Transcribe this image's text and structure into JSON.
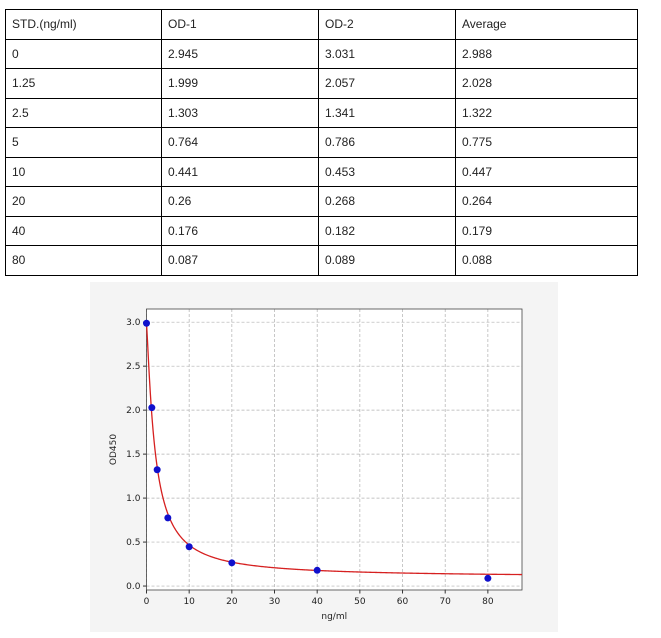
{
  "table": {
    "headers": [
      "STD.(ng/ml)",
      "OD-1",
      "OD-2",
      "Average"
    ],
    "rows": [
      [
        "0",
        "2.945",
        "3.031",
        "2.988"
      ],
      [
        "1.25",
        "1.999",
        "2.057",
        "2.028"
      ],
      [
        "2.5",
        "1.303",
        "1.341",
        "1.322"
      ],
      [
        "5",
        "0.764",
        "0.786",
        "0.775"
      ],
      [
        "10",
        "0.441",
        "0.453",
        "0.447"
      ],
      [
        "20",
        "0.26",
        "0.268",
        "0.264"
      ],
      [
        "40",
        "0.176",
        "0.182",
        "0.179"
      ],
      [
        "80",
        "0.087",
        "0.089",
        "0.088"
      ]
    ]
  },
  "chart_data": {
    "type": "scatter",
    "title": "",
    "xlabel": "ng/ml",
    "ylabel": "OD450",
    "xlim": [
      0,
      88
    ],
    "ylim": [
      -0.045,
      3.15
    ],
    "xticks": [
      0,
      10,
      20,
      30,
      40,
      50,
      60,
      70,
      80
    ],
    "yticks": [
      0.0,
      0.5,
      1.0,
      1.5,
      2.0,
      2.5,
      3.0
    ],
    "ytick_labels": [
      "0.0",
      "0.5",
      "1.0",
      "1.5",
      "2.0",
      "2.5",
      "3.0"
    ],
    "grid": true,
    "points": {
      "x": [
        0,
        1.25,
        2.5,
        5,
        10,
        20,
        40,
        80
      ],
      "y": [
        2.988,
        2.028,
        1.322,
        0.775,
        0.447,
        0.264,
        0.179,
        0.088
      ],
      "color": "#1010cc"
    },
    "fit_curve": {
      "model": "4PL",
      "a": 2.99,
      "b": 1.2,
      "c": 2.0,
      "d": 0.1,
      "color": "#d62020"
    }
  }
}
